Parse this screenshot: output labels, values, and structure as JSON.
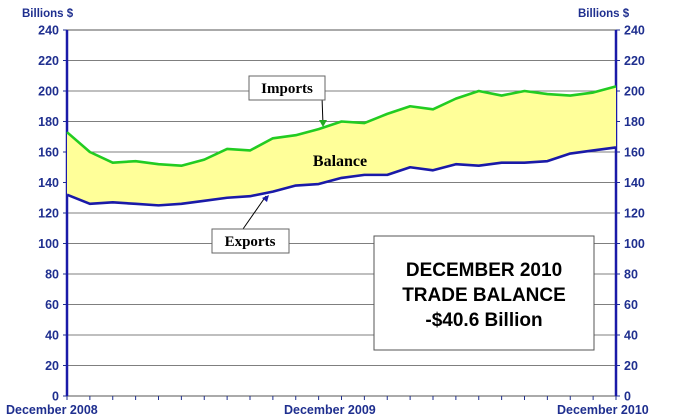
{
  "chart_data": {
    "type": "area",
    "ylabel_left": "Billions $",
    "ylabel_right": "Billions $",
    "ylim": [
      0,
      240
    ],
    "y_ticks": [
      0,
      20,
      40,
      60,
      80,
      100,
      120,
      140,
      160,
      180,
      200,
      220,
      240
    ],
    "x_tick_labels": [
      "December 2008",
      "December 2009",
      "December 2010"
    ],
    "x": [
      0,
      1,
      2,
      3,
      4,
      5,
      6,
      7,
      8,
      9,
      10,
      11,
      12,
      13,
      14,
      15,
      16,
      17,
      18,
      19,
      20,
      21,
      22,
      23,
      24
    ],
    "series": [
      {
        "name": "Imports",
        "color": "#22cc22",
        "values": [
          173,
          160,
          153,
          154,
          152,
          151,
          155,
          162,
          161,
          169,
          171,
          175,
          180,
          179,
          185,
          190,
          188,
          195,
          200,
          197,
          200,
          198,
          197,
          199,
          203
        ]
      },
      {
        "name": "Exports",
        "color": "#1a1aa8",
        "values": [
          132,
          126,
          127,
          126,
          125,
          126,
          128,
          130,
          131,
          134,
          138,
          139,
          143,
          145,
          145,
          150,
          148,
          152,
          151,
          153,
          153,
          154,
          159,
          161,
          163
        ]
      }
    ],
    "fill_label": "Balance",
    "fill_color": "#ffff99",
    "grid": true,
    "summary_lines": [
      "DECEMBER 2010",
      "TRADE BALANCE",
      "-$40.6 Billion"
    ]
  }
}
